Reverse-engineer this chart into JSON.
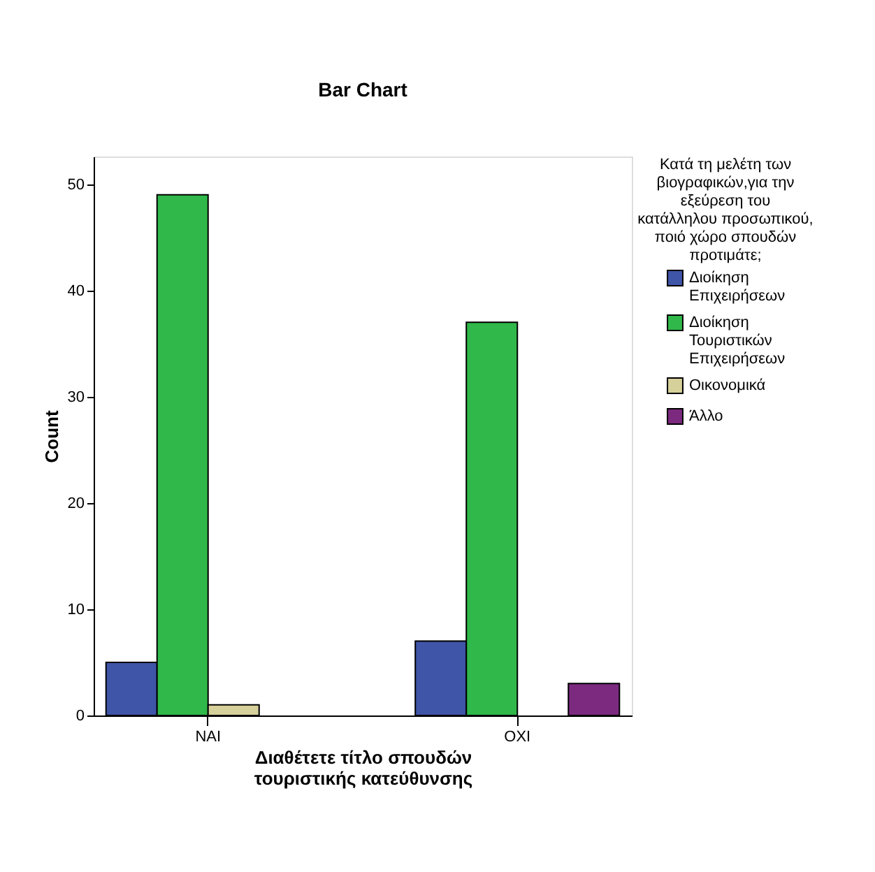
{
  "chart_data": {
    "type": "bar",
    "title": "Bar Chart",
    "xlabel": "Διαθέτετε τίτλο σπουδών τουριστικής κατεύθυνσης",
    "ylabel": "Count",
    "legend_title": "Κατά τη μελέτη των βιογραφικών,για την εξεύρεση του κατάλληλου προσωπικού, ποιό χώρο σπουδών προτιμάτε;",
    "categories": [
      "ΝΑΙ",
      "ΟΧΙ"
    ],
    "series": [
      {
        "name": "Διοίκηση Επιχειρήσεων",
        "color": "#3f55a8",
        "values": [
          5,
          7
        ]
      },
      {
        "name": "Διοίκηση Τουριστικών Επιχειρήσεων",
        "color": "#30b84a",
        "values": [
          49,
          37
        ]
      },
      {
        "name": "Οικονομικά",
        "color": "#d6d09a",
        "values": [
          1,
          null
        ]
      },
      {
        "name": "Άλλο",
        "color": "#7c2a80",
        "values": [
          null,
          3
        ]
      }
    ],
    "ylim": [
      0,
      52.6
    ],
    "yticks": [
      0,
      10,
      20,
      30,
      40,
      50
    ],
    "grid": false,
    "legend": "right"
  }
}
